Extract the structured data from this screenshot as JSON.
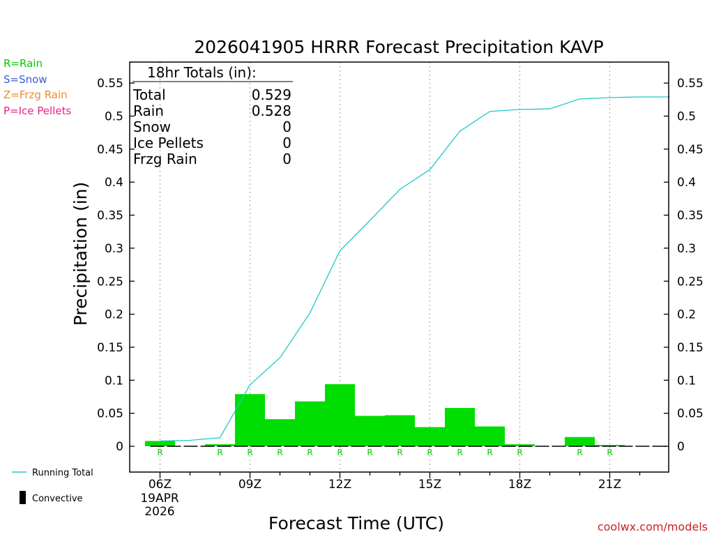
{
  "chart_data": {
    "type": "bar",
    "title": "2026041905 HRRR Forecast Precipitation KAVP",
    "xlabel": "Forecast Time (UTC)",
    "ylabel": "Precipitation (in)",
    "ylim": [
      -0.05,
      0.58
    ],
    "yticks": [
      0,
      0.05,
      0.1,
      0.15,
      0.2,
      0.25,
      0.3,
      0.35,
      0.4,
      0.45,
      0.5,
      0.55
    ],
    "ytick_labels": [
      "0",
      "0.05",
      "0.1",
      "0.15",
      "0.2",
      "0.25",
      "0.3",
      "0.35",
      "0.4",
      "0.45",
      "0.5",
      "0.55"
    ],
    "xlim": [
      5.0,
      23.0
    ],
    "xticks": [
      {
        "hour": 6,
        "label": "06Z"
      },
      {
        "hour": 9,
        "label": "09Z"
      },
      {
        "hour": 12,
        "label": "12Z"
      },
      {
        "hour": 15,
        "label": "15Z"
      },
      {
        "hour": 18,
        "label": "18Z"
      },
      {
        "hour": 21,
        "label": "21Z"
      }
    ],
    "date_label_line1": "19APR",
    "date_label_line2": "2026",
    "hourly_bars": {
      "name": "Rain",
      "hours": [
        6,
        7,
        8,
        9,
        10,
        11,
        12,
        13,
        14,
        15,
        16,
        17,
        18,
        19,
        20,
        21,
        22
      ],
      "values": [
        0.008,
        0.0,
        0.003,
        0.079,
        0.041,
        0.068,
        0.094,
        0.046,
        0.047,
        0.029,
        0.058,
        0.03,
        0.003,
        0.0,
        0.014,
        0.002,
        0.0
      ]
    },
    "precip_type_labels": {
      "hours": [
        6,
        8,
        9,
        10,
        11,
        12,
        13,
        14,
        15,
        16,
        17,
        18,
        20,
        21
      ],
      "codes": [
        "R",
        "R",
        "R",
        "R",
        "R",
        "R",
        "R",
        "R",
        "R",
        "R",
        "R",
        "R",
        "R",
        "R"
      ]
    },
    "running_total": {
      "name": "Running Total",
      "x": [
        6,
        7,
        8,
        9,
        10,
        11,
        12,
        13,
        14,
        15,
        16,
        17,
        18,
        19,
        20,
        21,
        22,
        23
      ],
      "y": [
        0.008,
        0.009,
        0.013,
        0.093,
        0.134,
        0.202,
        0.296,
        0.342,
        0.389,
        0.419,
        0.477,
        0.507,
        0.51,
        0.511,
        0.526,
        0.528,
        0.529,
        0.529
      ]
    },
    "totals_box": {
      "title": "18hr Totals (in):",
      "rows": [
        {
          "label": "Total",
          "value": "0.529"
        },
        {
          "label": "Rain",
          "value": "0.528"
        },
        {
          "label": "Snow",
          "value": "0"
        },
        {
          "label": "Ice Pellets",
          "value": "0"
        },
        {
          "label": "Frzg Rain",
          "value": "0"
        }
      ]
    },
    "type_legend": [
      {
        "text": "R=Rain",
        "color": "#00cc00"
      },
      {
        "text": "S=Snow",
        "color": "#3a5bd9"
      },
      {
        "text": "Z=Frzg Rain",
        "color": "#f08a30"
      },
      {
        "text": "P=Ice Pellets",
        "color": "#e8208a"
      }
    ],
    "series_legend": {
      "running_total": "Running Total",
      "convective": "Convective"
    },
    "watermark": "coolwx.com/models",
    "colors": {
      "bar": "#00dd00",
      "line": "#20c8c8",
      "rain_label": "#00cc00",
      "watermark": "#cc2222"
    }
  }
}
